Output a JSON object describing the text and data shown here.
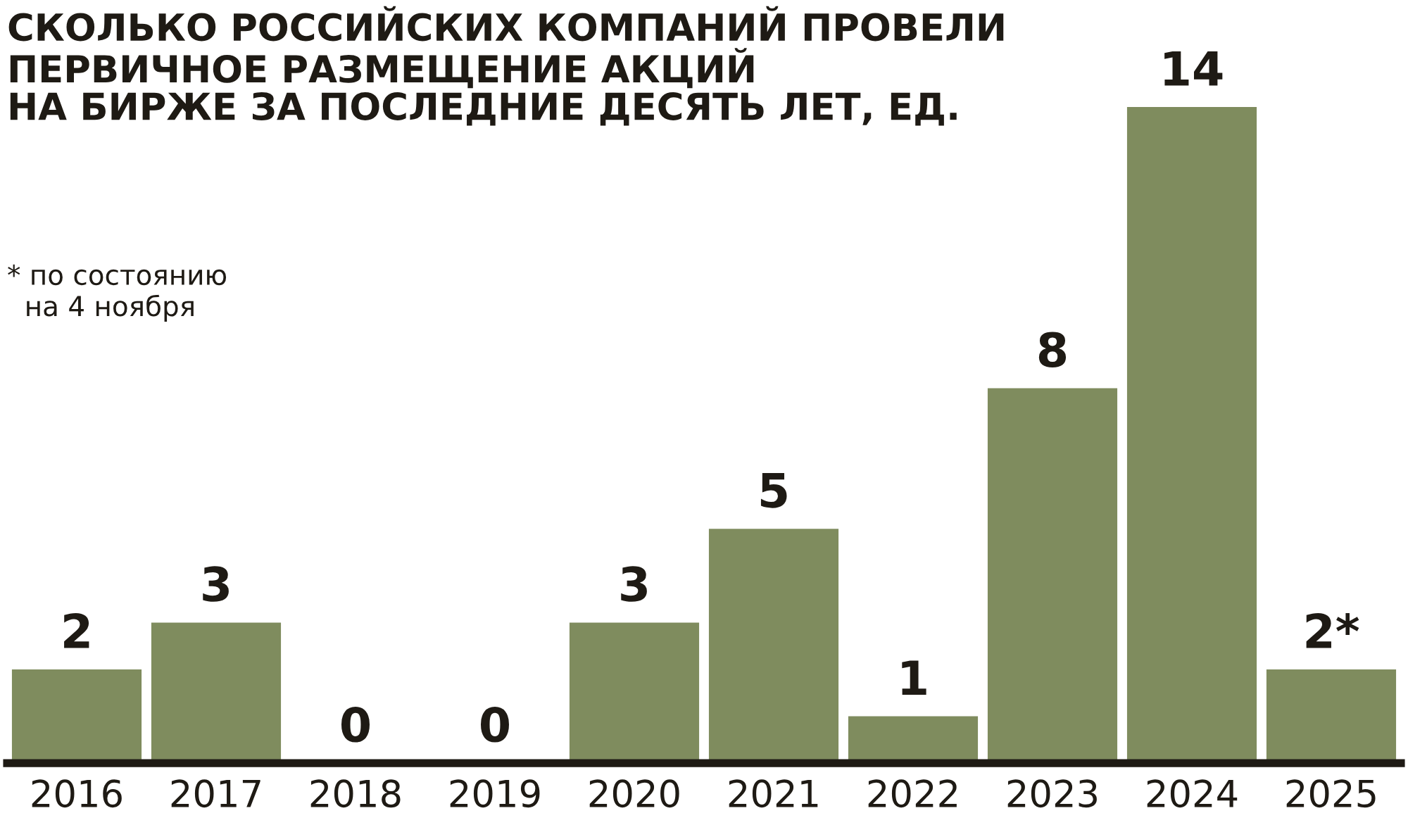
{
  "chart_data": {
    "type": "bar",
    "title": "СКОЛЬКО РОССИЙСКИХ КОМПАНИЙ ПРОВЕЛИ\nПЕРВИЧНОЕ РАЗМЕЩЕНИЕ АКЦИЙ\nНА БИРЖЕ ЗА ПОСЛЕДНИЕ ДЕСЯТЬ ЛЕТ, ЕД.",
    "categories": [
      "2016",
      "2017",
      "2018",
      "2019",
      "2020",
      "2021",
      "2022",
      "2023",
      "2024",
      "2025"
    ],
    "values": [
      2,
      3,
      0,
      0,
      3,
      5,
      1,
      8,
      14,
      2
    ],
    "value_labels": [
      "2",
      "3",
      "0",
      "0",
      "3",
      "5",
      "1",
      "8",
      "14",
      "2*"
    ],
    "color": "#7f8c5e",
    "annotations": [
      "* по состоянию\n  на 4 ноября"
    ]
  }
}
